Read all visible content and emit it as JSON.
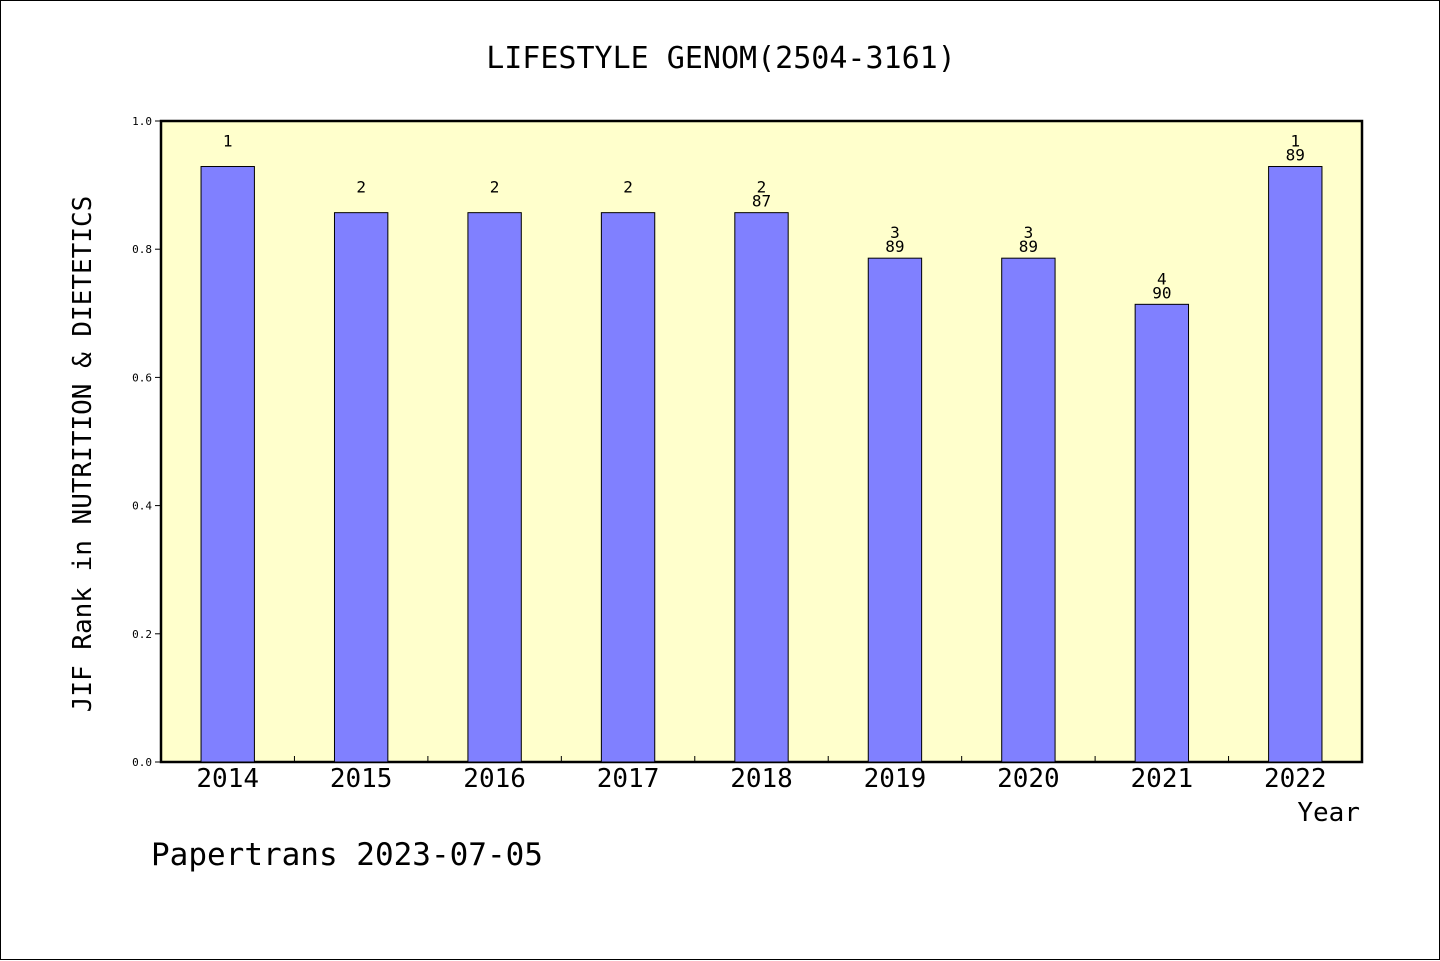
{
  "chart_data": {
    "type": "bar",
    "title": "LIFESTYLE GENOM(2504-3161)",
    "xlabel": "Year",
    "ylabel": "JIF Rank in NUTRITION & DIETETICS",
    "ylim": [
      0,
      1.0
    ],
    "yticks": [
      "0.0",
      "0.2",
      "0.4",
      "0.6",
      "0.8",
      "1.0"
    ],
    "categories": [
      "2014",
      "2015",
      "2016",
      "2017",
      "2018",
      "2019",
      "2020",
      "2021",
      "2022"
    ],
    "values": [
      0.929,
      0.857,
      0.857,
      0.857,
      0.857,
      0.786,
      0.786,
      0.714,
      0.929
    ],
    "bar_labels": [
      [
        "1"
      ],
      [
        "2"
      ],
      [
        "2"
      ],
      [
        "2"
      ],
      [
        "2",
        "87"
      ],
      [
        "3",
        "89"
      ],
      [
        "3",
        "89"
      ],
      [
        "4",
        "90"
      ],
      [
        "1",
        "89"
      ]
    ],
    "grid": false,
    "colors": {
      "plot_background": "#ffffcc",
      "bar_fill": "#8080ff",
      "bar_stroke": "#000000"
    }
  },
  "footer": "Papertrans 2023-07-05"
}
